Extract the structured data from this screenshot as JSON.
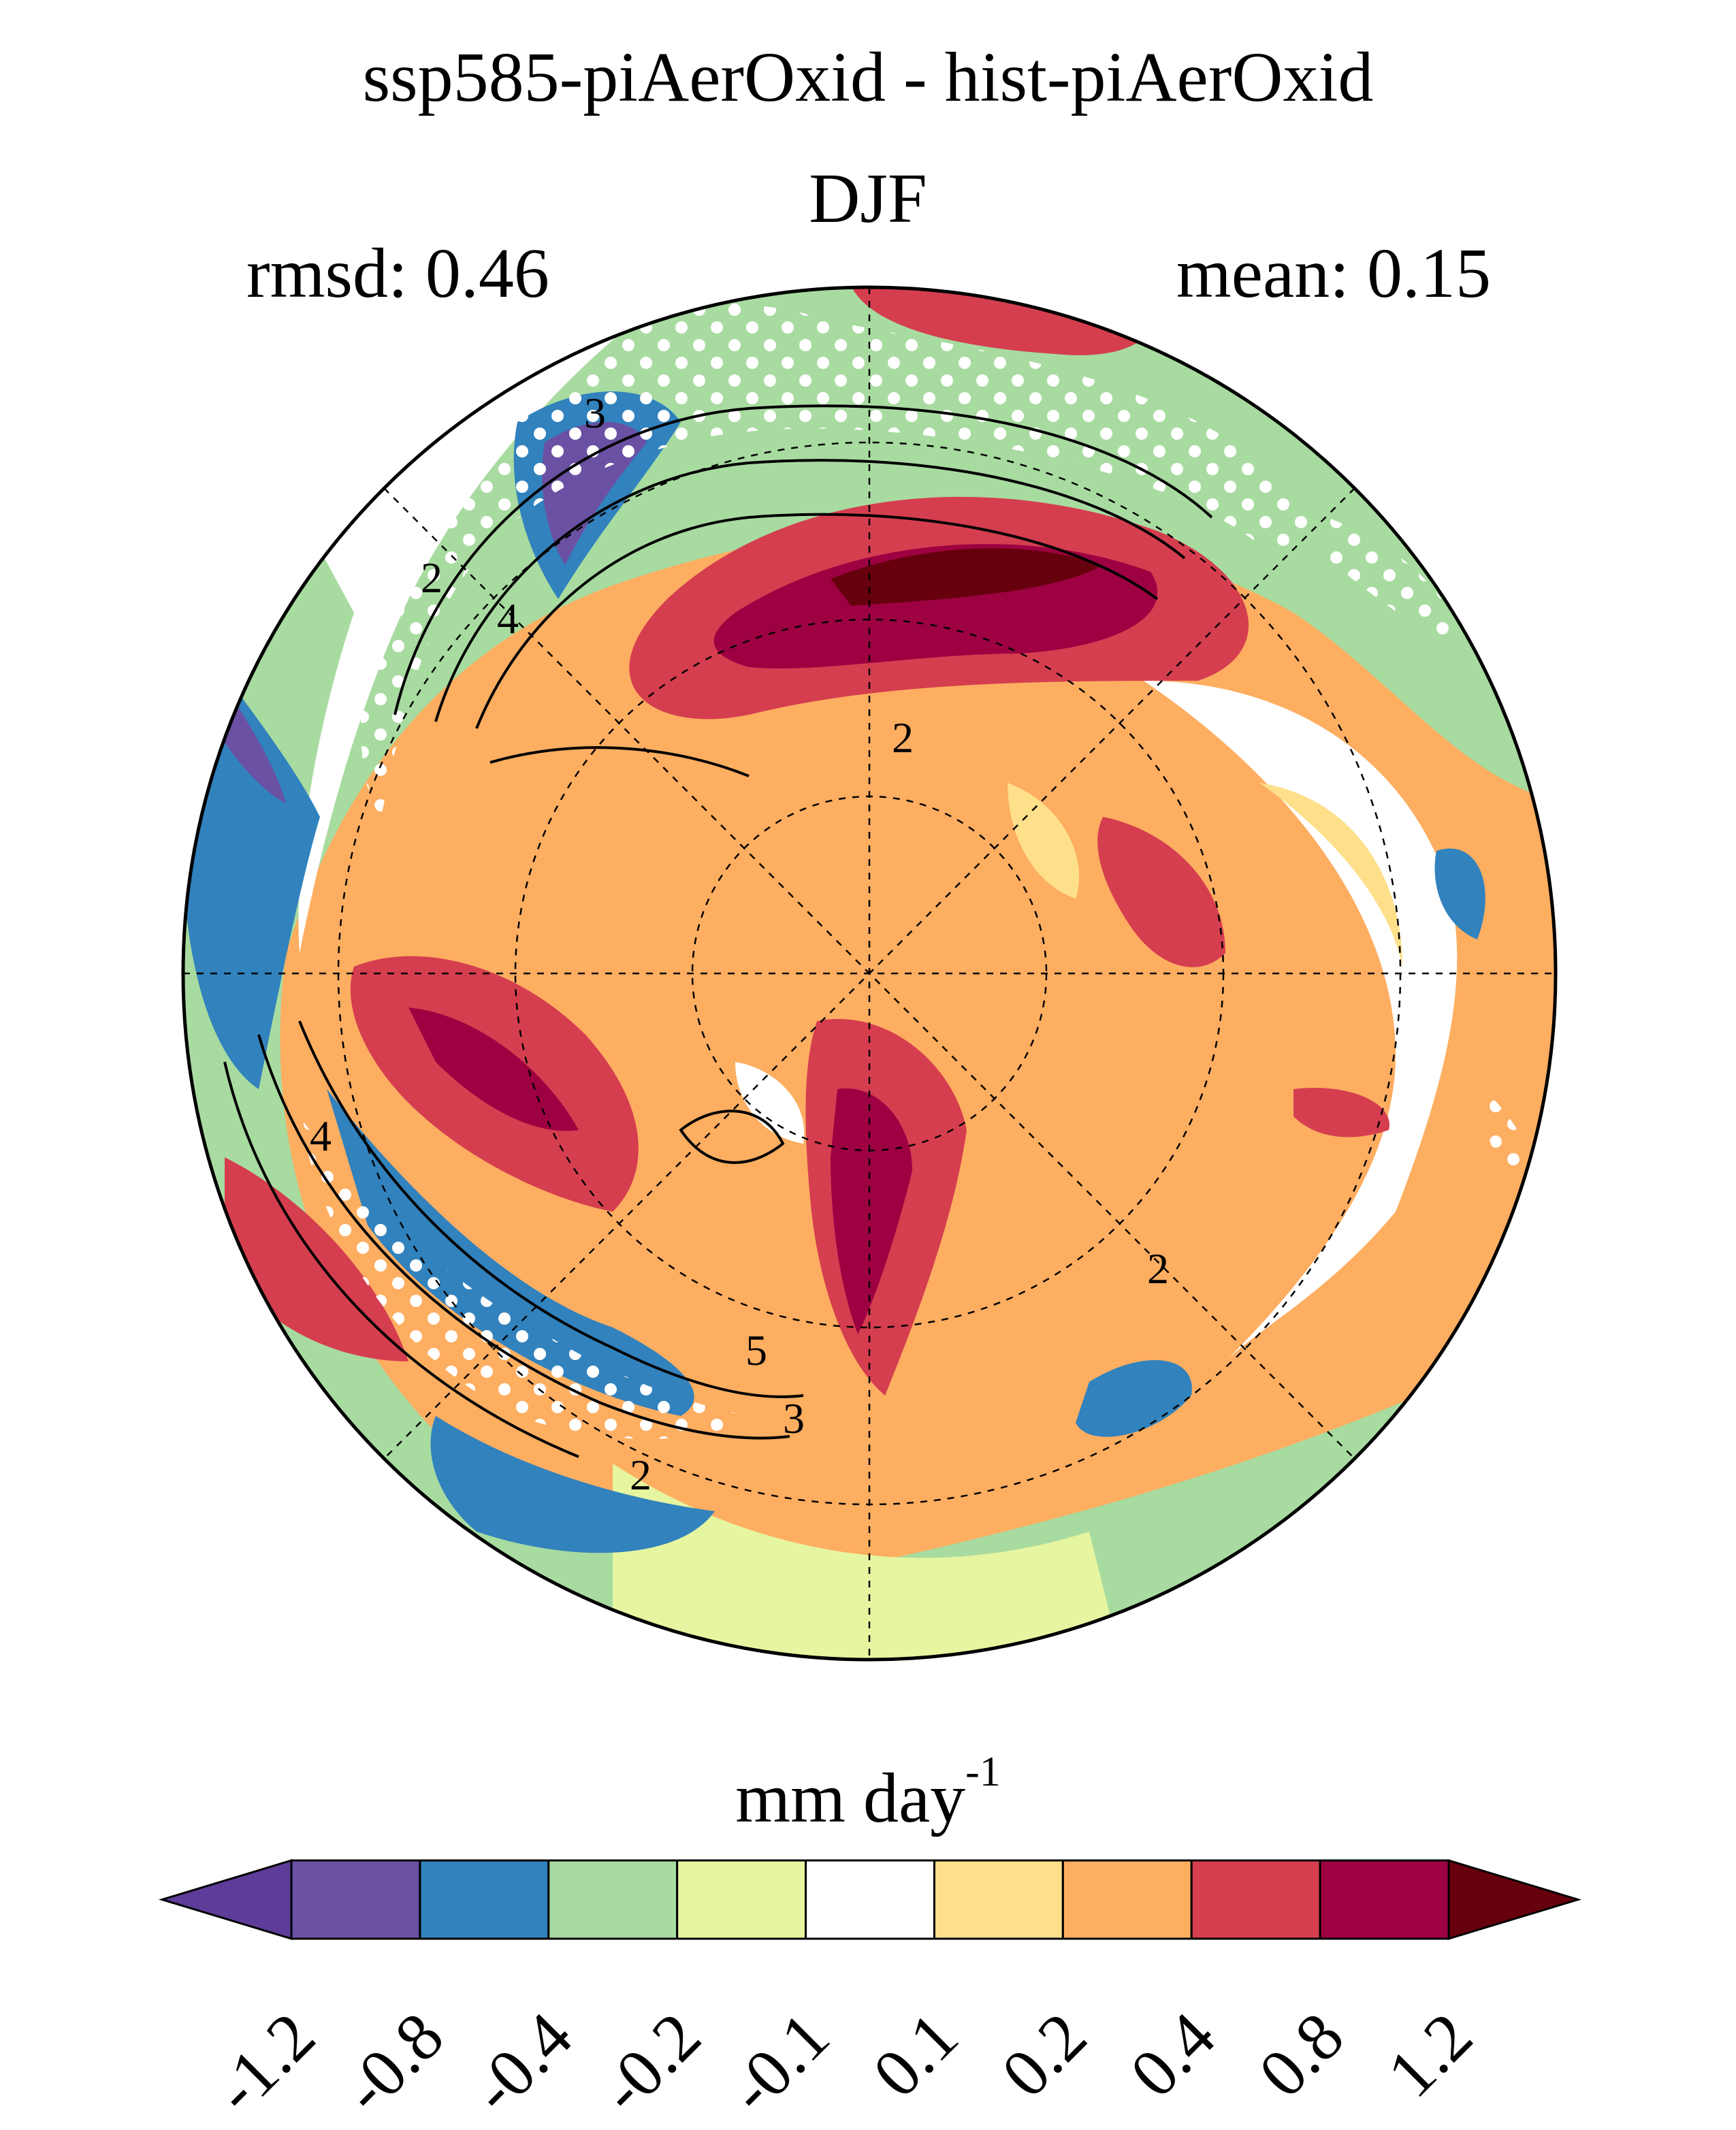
{
  "title": "ssp585-piAerOxid - hist-piAerOxid",
  "season": "DJF",
  "stats": {
    "rmsd": "rmsd: 0.46",
    "mean": "mean: 0.15"
  },
  "colorbar": {
    "units": "mm day",
    "units_exponent": "-1",
    "tick_labels": [
      "-1.2",
      "-0.8",
      "-0.4",
      "-0.2",
      "-0.1",
      "0.1",
      "0.2",
      "0.4",
      "0.8",
      "1.2"
    ],
    "colors": [
      "#5e3c99",
      "#6a51a3",
      "#3182bd",
      "#a8dba0",
      "#e6f5a0",
      "#ffffff",
      "#fee08b",
      "#fdae61",
      "#d53e4f",
      "#9e0142",
      "#67000d"
    ]
  },
  "contour_labels": [
    "3",
    "2",
    "4",
    "2",
    "4",
    "5",
    "3",
    "2",
    "2"
  ],
  "chart_data": {
    "type": "heatmap",
    "projection": "north polar stereographic",
    "variable": "precipitation difference",
    "levels": [
      -1.2,
      -0.8,
      -0.4,
      -0.2,
      -0.1,
      0.1,
      0.2,
      0.4,
      0.8,
      1.2
    ],
    "extend": "both",
    "stippling": true,
    "overlay_contours": true
  }
}
